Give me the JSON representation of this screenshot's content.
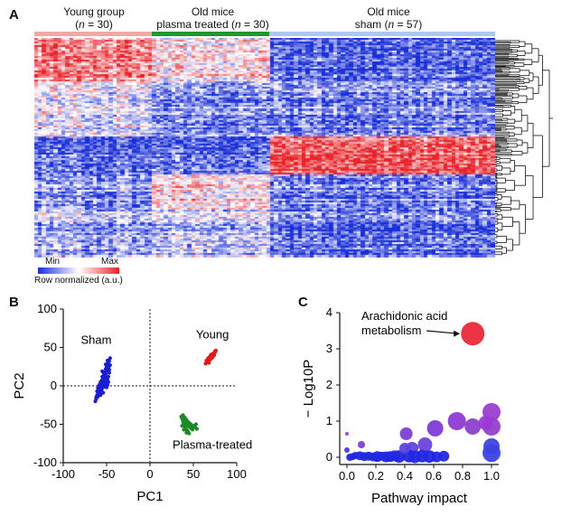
{
  "panels": {
    "a": "A",
    "b": "B",
    "c": "C"
  },
  "heatmap": {
    "groups": [
      {
        "line1": "Young group",
        "line2_pre": "(",
        "line2_n": "n",
        "line2_post": " = 30)",
        "color": "#f4a9a0"
      },
      {
        "line1": "Old mice",
        "line2_pre": "plasma treated (",
        "line2_n": "n",
        "line2_post": " = 30)",
        "color": "#1f9a2a"
      },
      {
        "line1": "Old mice",
        "line2_pre": "sham (",
        "line2_n": "n",
        "line2_post": " = 57)",
        "color": "#a9c8f2"
      }
    ],
    "legend": {
      "min": "Min",
      "max": "Max",
      "label": "Row normalized (a.u.)"
    },
    "colors": {
      "low": "#1a2fd6",
      "mid": "#ffffff",
      "high": "#e8232a"
    }
  },
  "chart_data": [
    {
      "type": "scatter",
      "panel": "B",
      "xlabel": "PC1",
      "ylabel": "PC2",
      "xlim": [
        -100,
        100
      ],
      "ylim": [
        -100,
        100
      ],
      "xticks": [
        -100,
        -50,
        0,
        50,
        100
      ],
      "yticks": [
        -100,
        -50,
        0,
        50,
        100
      ],
      "grid": false,
      "zero_lines": "dotted",
      "annotations": [
        "Sham",
        "Young",
        "Plasma-treated"
      ],
      "series": [
        {
          "name": "Sham",
          "color": "#1a1fd0",
          "points": [
            [
              -58,
              -2
            ],
            [
              -56,
              3
            ],
            [
              -55,
              8
            ],
            [
              -53,
              14
            ],
            [
              -52,
              18
            ],
            [
              -51,
              22
            ],
            [
              -50,
              25
            ],
            [
              -49,
              29
            ],
            [
              -47,
              32
            ],
            [
              -46,
              36
            ],
            [
              -60,
              -8
            ],
            [
              -61,
              -12
            ],
            [
              -62,
              -15
            ],
            [
              -63,
              -20
            ],
            [
              -59,
              -5
            ],
            [
              -57,
              0
            ],
            [
              -54,
              5
            ],
            [
              -53,
              10
            ],
            [
              -51,
              15
            ],
            [
              -50,
              20
            ],
            [
              -48,
              24
            ],
            [
              -55,
              12
            ],
            [
              -56,
              6
            ],
            [
              -58,
              2
            ],
            [
              -60,
              -3
            ],
            [
              -52,
              -1
            ],
            [
              -50,
              3
            ],
            [
              -49,
              8
            ],
            [
              -48,
              12
            ],
            [
              -47,
              17
            ],
            [
              -56,
              -6
            ],
            [
              -54,
              -9
            ],
            [
              -57,
              -12
            ],
            [
              -53,
              2
            ],
            [
              -51,
              6
            ],
            [
              -49,
              1
            ],
            [
              -55,
              -3
            ],
            [
              -59,
              -10
            ],
            [
              -61,
              -7
            ],
            [
              -50,
              11
            ],
            [
              -48,
              19
            ],
            [
              -46,
              27
            ],
            [
              -47,
              21
            ],
            [
              -52,
              9
            ],
            [
              -54,
              -1
            ],
            [
              -56,
              -4
            ],
            [
              -58,
              -9
            ],
            [
              -60,
              -14
            ],
            [
              -62,
              -17
            ],
            [
              -53,
              16
            ],
            [
              -51,
              28
            ],
            [
              -49,
              33
            ],
            [
              -55,
              19
            ],
            [
              -57,
              5
            ],
            [
              -59,
              0
            ],
            [
              -50,
              -2
            ],
            [
              -48,
              5
            ]
          ]
        },
        {
          "name": "Young",
          "color": "#e01b1b",
          "points": [
            [
              65,
              30
            ],
            [
              66,
              32
            ],
            [
              67,
              33
            ],
            [
              68,
              35
            ],
            [
              69,
              36
            ],
            [
              70,
              37
            ],
            [
              71,
              39
            ],
            [
              72,
              40
            ],
            [
              73,
              42
            ],
            [
              74,
              43
            ],
            [
              66,
              31
            ],
            [
              67,
              34
            ],
            [
              68,
              33
            ],
            [
              69,
              38
            ],
            [
              70,
              35
            ],
            [
              71,
              38
            ],
            [
              72,
              37
            ],
            [
              73,
              41
            ],
            [
              74,
              40
            ],
            [
              75,
              44
            ],
            [
              64,
              29
            ],
            [
              65,
              33
            ],
            [
              67,
              36
            ],
            [
              69,
              34
            ],
            [
              71,
              41
            ],
            [
              73,
              39
            ],
            [
              75,
              45
            ],
            [
              76,
              46
            ],
            [
              68,
              30
            ],
            [
              70,
              40
            ]
          ]
        },
        {
          "name": "Plasma-treated",
          "color": "#1e8a25",
          "points": [
            [
              36,
              -40
            ],
            [
              37,
              -43
            ],
            [
              38,
              -47
            ],
            [
              39,
              -50
            ],
            [
              40,
              -53
            ],
            [
              41,
              -55
            ],
            [
              42,
              -57
            ],
            [
              43,
              -58
            ],
            [
              44,
              -60
            ],
            [
              45,
              -62
            ],
            [
              38,
              -38
            ],
            [
              40,
              -41
            ],
            [
              42,
              -44
            ],
            [
              44,
              -47
            ],
            [
              46,
              -49
            ],
            [
              48,
              -51
            ],
            [
              50,
              -53
            ],
            [
              52,
              -54
            ],
            [
              54,
              -56
            ],
            [
              39,
              -45
            ],
            [
              41,
              -48
            ],
            [
              43,
              -51
            ],
            [
              45,
              -53
            ],
            [
              47,
              -55
            ],
            [
              49,
              -57
            ],
            [
              51,
              -52
            ],
            [
              53,
              -50
            ],
            [
              37,
              -52
            ],
            [
              39,
              -57
            ],
            [
              42,
              -61
            ]
          ]
        }
      ]
    },
    {
      "type": "bubble",
      "panel": "C",
      "xlabel": "Pathway impact",
      "ylabel": "− Log10P",
      "xlim": [
        -0.05,
        1.05
      ],
      "ylim": [
        -0.2,
        4
      ],
      "xticks": [
        0.0,
        0.2,
        0.4,
        0.6,
        0.8,
        1.0
      ],
      "yticks": [
        0,
        1,
        2,
        3,
        4
      ],
      "annotation": {
        "line1": "Arachidonic acid",
        "line2": "metabolism"
      },
      "points": [
        {
          "x": 0.87,
          "y": 3.42,
          "r": 13,
          "color": "#ea2a3a"
        },
        {
          "x": 1.0,
          "y": 1.25,
          "r": 10,
          "color": "#9a3fd0"
        },
        {
          "x": 0.96,
          "y": 0.95,
          "r": 8,
          "color": "#9b3bd6"
        },
        {
          "x": 1.0,
          "y": 0.85,
          "r": 10,
          "color": "#9540cc"
        },
        {
          "x": 0.76,
          "y": 1.0,
          "r": 10,
          "color": "#8f3ad6"
        },
        {
          "x": 0.87,
          "y": 0.85,
          "r": 9,
          "color": "#8e40cc"
        },
        {
          "x": 0.61,
          "y": 0.8,
          "r": 9,
          "color": "#7e3bd8"
        },
        {
          "x": 0.54,
          "y": 0.35,
          "r": 8,
          "color": "#6b43dc"
        },
        {
          "x": 0.41,
          "y": 0.65,
          "r": 7,
          "color": "#7c3ed6"
        },
        {
          "x": 0.45,
          "y": 0.25,
          "r": 7,
          "color": "#5d44de"
        },
        {
          "x": 0.4,
          "y": 0.25,
          "r": 6,
          "color": "#5c46de"
        },
        {
          "x": 1.0,
          "y": 0.3,
          "r": 9,
          "color": "#3f44e0"
        },
        {
          "x": 1.0,
          "y": 0.12,
          "r": 10,
          "color": "#3a44e4"
        },
        {
          "x": 0.1,
          "y": 0.35,
          "r": 4,
          "color": "#7b3ed8"
        },
        {
          "x": 0.0,
          "y": 0.65,
          "r": 2,
          "color": "#9a3fd0"
        },
        {
          "x": 0.0,
          "y": 0.2,
          "r": 3,
          "color": "#3a40e0"
        },
        {
          "x": 0.04,
          "y": 0.02,
          "r": 4,
          "color": "#2228e0"
        },
        {
          "x": 0.06,
          "y": 0.05,
          "r": 4,
          "color": "#2228e0"
        },
        {
          "x": 0.09,
          "y": 0.04,
          "r": 5,
          "color": "#2228e0"
        },
        {
          "x": 0.12,
          "y": 0.02,
          "r": 5,
          "color": "#2228e0"
        },
        {
          "x": 0.15,
          "y": 0.03,
          "r": 5,
          "color": "#2228e0"
        },
        {
          "x": 0.18,
          "y": 0.01,
          "r": 5,
          "color": "#2228e0"
        },
        {
          "x": 0.21,
          "y": 0.02,
          "r": 6,
          "color": "#2228e0"
        },
        {
          "x": 0.24,
          "y": 0.03,
          "r": 5,
          "color": "#2228e0"
        },
        {
          "x": 0.27,
          "y": 0.01,
          "r": 6,
          "color": "#2228e0"
        },
        {
          "x": 0.3,
          "y": 0.02,
          "r": 6,
          "color": "#2228e0"
        },
        {
          "x": 0.33,
          "y": 0.04,
          "r": 6,
          "color": "#2228e0"
        },
        {
          "x": 0.36,
          "y": 0.02,
          "r": 7,
          "color": "#2228e0"
        },
        {
          "x": 0.43,
          "y": 0.03,
          "r": 7,
          "color": "#2228e0"
        },
        {
          "x": 0.47,
          "y": 0.01,
          "r": 7,
          "color": "#2228e0"
        },
        {
          "x": 0.52,
          "y": 0.03,
          "r": 7,
          "color": "#2228e0"
        },
        {
          "x": 0.57,
          "y": 0.02,
          "r": 7,
          "color": "#2228e0"
        },
        {
          "x": 0.62,
          "y": 0.01,
          "r": 6,
          "color": "#2228e0"
        },
        {
          "x": 0.67,
          "y": 0.03,
          "r": 6,
          "color": "#2228e0"
        },
        {
          "x": 0.02,
          "y": 0.0,
          "r": 4,
          "color": "#2228e0"
        },
        {
          "x": 0.2,
          "y": 0.0,
          "r": 4,
          "color": "#2228e0"
        }
      ]
    }
  ]
}
